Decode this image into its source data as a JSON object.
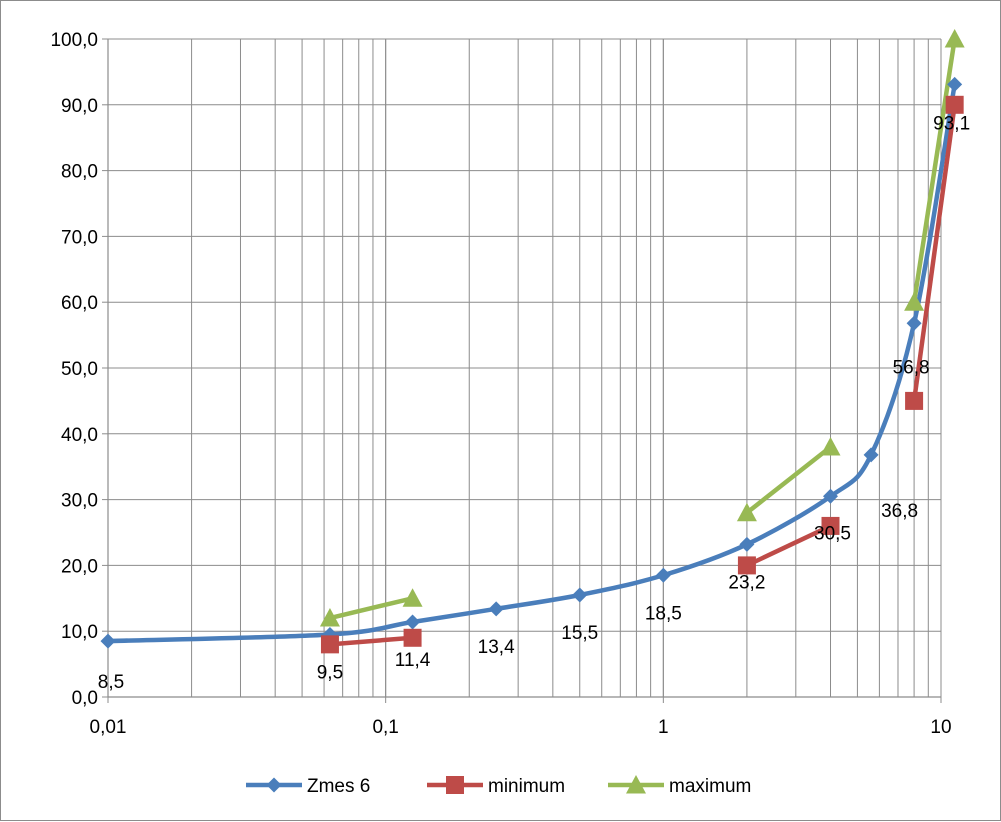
{
  "chart_data": {
    "type": "line",
    "title": "",
    "xlabel": "",
    "ylabel": "",
    "x_scale": "log",
    "xlim": [
      0.01,
      10
    ],
    "ylim": [
      0,
      100
    ],
    "x_ticks": [
      0.01,
      0.1,
      1,
      10
    ],
    "x_tick_labels": [
      "0,01",
      "0,1",
      "1",
      "10"
    ],
    "y_ticks": [
      0,
      10,
      20,
      30,
      40,
      50,
      60,
      70,
      80,
      90,
      100
    ],
    "y_tick_labels": [
      "0,0",
      "10,0",
      "20,0",
      "30,0",
      "40,0",
      "50,0",
      "60,0",
      "70,0",
      "80,0",
      "90,0",
      "100,0"
    ],
    "grid": true,
    "legend_position": "bottom",
    "series": [
      {
        "name": "Zmes 6",
        "color": "#4a7ebb",
        "marker": "diamond",
        "smooth": true,
        "x": [
          0.01,
          0.063,
          0.125,
          0.25,
          0.5,
          1,
          2,
          4,
          5.6,
          8,
          11.2
        ],
        "y": [
          8.5,
          9.5,
          11.4,
          13.4,
          15.5,
          18.5,
          23.2,
          30.5,
          36.8,
          56.8,
          93.1
        ],
        "data_labels": [
          "8,5",
          "9,5",
          "11,4",
          "13,4",
          "15,5",
          "18,5",
          "23,2",
          "30,5",
          "36,8",
          "56,8",
          "93,1"
        ]
      },
      {
        "name": "minimum",
        "color": "#be4b48",
        "marker": "square",
        "smooth": false,
        "x": [
          0.063,
          0.125,
          2,
          4,
          8,
          11.2
        ],
        "y": [
          8,
          9,
          20,
          26,
          45,
          90
        ]
      },
      {
        "name": "maximum",
        "color": "#98b954",
        "marker": "triangle",
        "smooth": false,
        "x": [
          0.063,
          0.125,
          2,
          4,
          8,
          11.2
        ],
        "y": [
          12,
          15,
          28,
          38,
          60,
          100
        ]
      }
    ]
  }
}
